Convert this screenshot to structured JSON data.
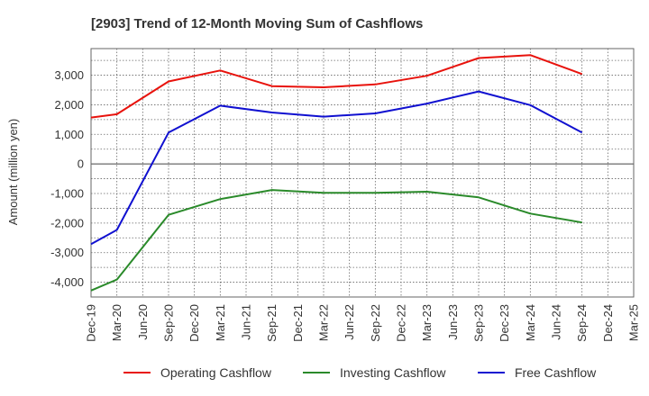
{
  "chart_data": {
    "type": "line",
    "title": "[2903]  Trend of 12-Month Moving Sum of Cashflows",
    "xlabel": "",
    "ylabel": "Amount (million yen)",
    "ylim": [
      -4500,
      3900
    ],
    "yticks": [
      3000,
      2000,
      1000,
      0,
      -1000,
      -2000,
      -3000,
      -4000
    ],
    "ytick_labels": [
      "3,000",
      "2,000",
      "1,000",
      "0",
      "-1,000",
      "-2,000",
      "-3,000",
      "-4,000"
    ],
    "categories": [
      "Dec-19",
      "Mar-20",
      "Jun-20",
      "Sep-20",
      "Dec-20",
      "Mar-21",
      "Jun-21",
      "Sep-21",
      "Dec-21",
      "Mar-22",
      "Jun-22",
      "Sep-22",
      "Dec-22",
      "Mar-23",
      "Jun-23",
      "Sep-23",
      "Dec-23",
      "Mar-24",
      "Jun-24",
      "Sep-24",
      "Dec-24",
      "Mar-25"
    ],
    "series": [
      {
        "name": "Operating Cashflow",
        "color": "#e8120c",
        "values": [
          1570,
          1680,
          null,
          2790,
          null,
          3160,
          null,
          2630,
          null,
          2590,
          null,
          2690,
          null,
          2980,
          null,
          3580,
          null,
          3680,
          null,
          3040,
          null,
          null
        ]
      },
      {
        "name": "Investing Cashflow",
        "color": "#2a8a2a",
        "values": [
          -4280,
          -3910,
          null,
          -1720,
          null,
          -1190,
          null,
          -880,
          null,
          -980,
          null,
          -980,
          null,
          -940,
          null,
          -1130,
          null,
          -1680,
          null,
          -1980,
          null,
          null
        ]
      },
      {
        "name": "Free Cashflow",
        "color": "#1010d0",
        "values": [
          -2710,
          -2230,
          null,
          1060,
          null,
          1970,
          null,
          1740,
          null,
          1600,
          null,
          1710,
          null,
          2040,
          null,
          2450,
          null,
          1990,
          null,
          1060,
          null,
          null
        ]
      }
    ],
    "grid": true,
    "legend_position": "bottom"
  }
}
